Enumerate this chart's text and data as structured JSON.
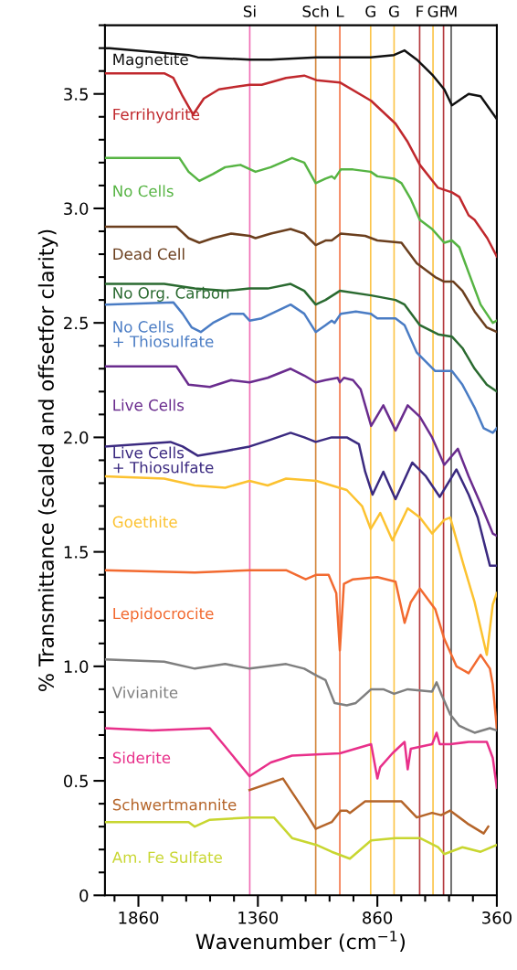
{
  "chart_data": {
    "type": "line",
    "xlabel": "Wavenumber (cm$^{−1}$)",
    "ylabel": "% Transmittance (scaled and offsetfor clarity)",
    "xlim": [
      2000,
      360
    ],
    "xticks": [
      {
        "value": 1960,
        "label": null
      },
      1860,
      {
        "value": 1760,
        "label": null
      },
      {
        "value": 1660,
        "label": null
      },
      {
        "value": 1560,
        "label": null
      },
      {
        "value": 1460,
        "label": null
      },
      1360,
      {
        "value": 1260,
        "label": null
      },
      {
        "value": 1160,
        "label": null
      },
      {
        "value": 1060,
        "label": null
      },
      {
        "value": 960,
        "label": null
      },
      860,
      {
        "value": 760,
        "label": null
      },
      {
        "value": 660,
        "label": null
      },
      {
        "value": 560,
        "label": null
      },
      {
        "value": 460,
        "label": null
      },
      360
    ],
    "ylim": [
      0,
      3.8
    ],
    "yticks": [
      0,
      {
        "value": 0.1,
        "label": null
      },
      {
        "value": 0.2,
        "label": null
      },
      {
        "value": 0.3,
        "label": null
      },
      {
        "value": 0.4,
        "label": null
      },
      0.5,
      {
        "value": 0.6,
        "label": null
      },
      {
        "value": 0.7,
        "label": null
      },
      {
        "value": 0.8,
        "label": null
      },
      {
        "value": 0.9,
        "label": null
      },
      {
        "value": 1,
        "label": "1.0"
      },
      {
        "value": 1.1,
        "label": null
      },
      {
        "value": 1.2,
        "label": null
      },
      {
        "value": 1.3,
        "label": null
      },
      {
        "value": 1.4,
        "label": null
      },
      1.5,
      {
        "value": 1.6,
        "label": null
      },
      {
        "value": 1.7,
        "label": null
      },
      {
        "value": 1.8,
        "label": null
      },
      {
        "value": 1.9,
        "label": null
      },
      {
        "value": 2,
        "label": "2.0"
      },
      {
        "value": 2.1,
        "label": null
      },
      {
        "value": 2.2,
        "label": null
      },
      {
        "value": 2.3,
        "label": null
      },
      {
        "value": 2.4,
        "label": null
      },
      2.5,
      {
        "value": 2.6,
        "label": null
      },
      {
        "value": 2.7,
        "label": null
      },
      {
        "value": 2.8,
        "label": null
      },
      {
        "value": 2.9,
        "label": null
      },
      {
        "value": 3,
        "label": "3.0"
      },
      {
        "value": 3.1,
        "label": null
      },
      {
        "value": 3.2,
        "label": null
      },
      {
        "value": 3.3,
        "label": null
      },
      {
        "value": 3.4,
        "label": null
      },
      3.5,
      {
        "value": 3.6,
        "label": null
      },
      {
        "value": 3.7,
        "label": null
      },
      {
        "value": 3.8,
        "label": null
      }
    ],
    "grid": false,
    "legend": false,
    "marker": "none",
    "line_style": "solid",
    "ref_lines": [
      {
        "axis": "x",
        "value": 1394,
        "label": "Si",
        "color": "#f06eb4"
      },
      {
        "axis": "x",
        "value": 1118,
        "label": "Sch",
        "color": "#d4873c"
      },
      {
        "axis": "x",
        "value": 1017,
        "label": "L",
        "color": "#f4764a"
      },
      {
        "axis": "x",
        "value": 888,
        "label": "G",
        "color": "#fcc54a"
      },
      {
        "axis": "x",
        "value": 790,
        "label": "G",
        "color": "#fcc54a"
      },
      {
        "axis": "x",
        "value": 683,
        "label": "F",
        "color": "#b53a3e"
      },
      {
        "axis": "x",
        "value": 627,
        "label": "G",
        "color": "#fcc54a"
      },
      {
        "axis": "x",
        "value": 583,
        "label": "F",
        "color": "#b53a3e"
      },
      {
        "axis": "x",
        "value": 551,
        "label": "M",
        "color": "#555555"
      }
    ],
    "series": [
      {
        "name": "Magnetite",
        "color": "#111111",
        "x": [
          2000,
          1981,
          1650,
          1612,
          1395,
          1306,
          1115,
          888,
          790,
          746,
          695,
          627,
          580,
          548,
          478,
          428,
          360
        ],
        "values": [
          3.7,
          3.7,
          3.67,
          3.66,
          3.65,
          3.65,
          3.66,
          3.66,
          3.67,
          3.69,
          3.65,
          3.58,
          3.52,
          3.45,
          3.5,
          3.49,
          3.39
        ]
      },
      {
        "name": "Ferrihydrite",
        "color": "#c0282d",
        "x": [
          2000,
          1752,
          1714,
          1675,
          1631,
          1586,
          1523,
          1395,
          1344,
          1242,
          1166,
          1115,
          1017,
          886,
          784,
          733,
          682,
          606,
          548,
          517,
          478,
          453,
          400,
          360
        ],
        "values": [
          3.59,
          3.59,
          3.57,
          3.49,
          3.41,
          3.48,
          3.52,
          3.54,
          3.54,
          3.57,
          3.58,
          3.56,
          3.55,
          3.47,
          3.37,
          3.29,
          3.19,
          3.09,
          3.07,
          3.05,
          2.97,
          2.95,
          2.87,
          2.79
        ]
      },
      {
        "name": "No Cells",
        "color": "#56b443",
        "x": [
          2000,
          1688,
          1650,
          1605,
          1548,
          1497,
          1433,
          1370,
          1306,
          1217,
          1166,
          1118,
          1077,
          1051,
          1039,
          1013,
          962,
          888,
          860,
          790,
          759,
          720,
          682,
          631,
          580,
          548,
          517,
          478,
          428,
          377,
          360
        ],
        "values": [
          3.22,
          3.22,
          3.16,
          3.12,
          3.15,
          3.18,
          3.19,
          3.16,
          3.18,
          3.22,
          3.2,
          3.11,
          3.13,
          3.14,
          3.13,
          3.17,
          3.17,
          3.16,
          3.14,
          3.13,
          3.11,
          3.04,
          2.95,
          2.91,
          2.85,
          2.86,
          2.83,
          2.72,
          2.58,
          2.5,
          2.51
        ]
      },
      {
        "name": "Dead Cell",
        "color": "#6b3f1e",
        "x": [
          2000,
          1701,
          1650,
          1605,
          1548,
          1472,
          1395,
          1370,
          1306,
          1223,
          1166,
          1118,
          1077,
          1051,
          1013,
          911,
          860,
          759,
          695,
          618,
          580,
          542,
          504,
          453,
          402,
          360
        ],
        "values": [
          2.92,
          2.92,
          2.87,
          2.85,
          2.87,
          2.89,
          2.88,
          2.87,
          2.89,
          2.91,
          2.89,
          2.84,
          2.86,
          2.86,
          2.89,
          2.88,
          2.86,
          2.85,
          2.76,
          2.7,
          2.68,
          2.68,
          2.64,
          2.55,
          2.48,
          2.46
        ]
      },
      {
        "name": "No Org. Carbon",
        "color": "#2a6a30",
        "x": [
          2000,
          1752,
          1624,
          1497,
          1395,
          1319,
          1223,
          1166,
          1118,
          1077,
          1017,
          886,
          784,
          746,
          682,
          606,
          548,
          504,
          453,
          402,
          360
        ],
        "values": [
          2.67,
          2.67,
          2.65,
          2.64,
          2.65,
          2.65,
          2.67,
          2.64,
          2.58,
          2.6,
          2.64,
          2.62,
          2.6,
          2.58,
          2.49,
          2.45,
          2.44,
          2.39,
          2.3,
          2.23,
          2.2
        ]
      },
      {
        "name": "No Cells\n+ Thiosulfate",
        "color": "#4a7cc4",
        "x": [
          2000,
          1714,
          1675,
          1637,
          1599,
          1548,
          1472,
          1421,
          1395,
          1344,
          1223,
          1166,
          1118,
          1077,
          1051,
          1039,
          1013,
          950,
          888,
          860,
          784,
          746,
          695,
          618,
          580,
          548,
          504,
          453,
          415,
          377,
          360
        ],
        "values": [
          2.58,
          2.59,
          2.54,
          2.48,
          2.46,
          2.5,
          2.54,
          2.54,
          2.51,
          2.52,
          2.58,
          2.54,
          2.46,
          2.49,
          2.51,
          2.5,
          2.54,
          2.55,
          2.54,
          2.52,
          2.52,
          2.49,
          2.37,
          2.29,
          2.29,
          2.29,
          2.23,
          2.13,
          2.04,
          2.02,
          2.04
        ]
      },
      {
        "name": "Live Cells",
        "color": "#6a2c8e",
        "x": [
          2000,
          1701,
          1650,
          1561,
          1472,
          1395,
          1319,
          1223,
          1166,
          1118,
          1077,
          1026,
          1017,
          1000,
          962,
          930,
          886,
          835,
          784,
          733,
          682,
          631,
          580,
          523,
          478,
          428,
          377,
          360
        ],
        "values": [
          2.31,
          2.31,
          2.23,
          2.22,
          2.25,
          2.24,
          2.26,
          2.3,
          2.27,
          2.24,
          2.25,
          2.26,
          2.24,
          2.26,
          2.25,
          2.21,
          2.05,
          2.14,
          2.03,
          2.14,
          2.09,
          2.0,
          1.88,
          1.95,
          1.83,
          1.71,
          1.58,
          1.57
        ]
      },
      {
        "name": "Live Cells\n+ Thiosulfate",
        "color": "#3b2a80",
        "x": [
          2000,
          1726,
          1675,
          1612,
          1497,
          1395,
          1306,
          1223,
          1166,
          1118,
          1051,
          988,
          937,
          911,
          880,
          835,
          784,
          714,
          657,
          599,
          529,
          478,
          440,
          389,
          360
        ],
        "values": [
          1.96,
          1.98,
          1.96,
          1.92,
          1.94,
          1.96,
          1.99,
          2.02,
          2.0,
          1.98,
          2.0,
          2.0,
          1.97,
          1.85,
          1.75,
          1.85,
          1.73,
          1.89,
          1.83,
          1.74,
          1.86,
          1.75,
          1.65,
          1.44,
          1.44
        ]
      },
      {
        "name": "Goethite",
        "color": "#fcc230",
        "x": [
          2000,
          1752,
          1624,
          1497,
          1395,
          1319,
          1242,
          1115,
          988,
          924,
          888,
          848,
          797,
          733,
          682,
          631,
          580,
          555,
          504,
          453,
          402,
          377,
          360
        ],
        "values": [
          1.83,
          1.82,
          1.79,
          1.78,
          1.81,
          1.79,
          1.82,
          1.81,
          1.77,
          1.7,
          1.6,
          1.67,
          1.55,
          1.69,
          1.65,
          1.58,
          1.64,
          1.65,
          1.46,
          1.28,
          1.05,
          1.27,
          1.32
        ]
      },
      {
        "name": "Lepidocrocite",
        "color": "#f26a30",
        "x": [
          2000,
          1624,
          1395,
          1242,
          1160,
          1115,
          1064,
          1032,
          1017,
          1000,
          962,
          860,
          784,
          746,
          720,
          682,
          618,
          580,
          529,
          478,
          428,
          389,
          377,
          360
        ],
        "values": [
          1.42,
          1.41,
          1.42,
          1.42,
          1.38,
          1.4,
          1.4,
          1.32,
          1.07,
          1.36,
          1.38,
          1.39,
          1.37,
          1.19,
          1.28,
          1.34,
          1.25,
          1.12,
          1.0,
          0.97,
          1.05,
          0.99,
          0.92,
          0.73
        ]
      },
      {
        "name": "Vivianite",
        "color": "#7f7f7f",
        "x": [
          2000,
          1752,
          1624,
          1497,
          1395,
          1242,
          1166,
          1115,
          1077,
          1039,
          988,
          950,
          886,
          835,
          790,
          733,
          631,
          612,
          593,
          555,
          517,
          453,
          389,
          360
        ],
        "values": [
          1.03,
          1.02,
          0.99,
          1.01,
          0.99,
          1.01,
          0.99,
          0.96,
          0.94,
          0.84,
          0.83,
          0.84,
          0.9,
          0.9,
          0.88,
          0.9,
          0.89,
          0.93,
          0.88,
          0.79,
          0.74,
          0.71,
          0.73,
          0.72
        ]
      },
      {
        "name": "Siderite",
        "color": "#e8308a",
        "x": [
          2000,
          1803,
          1561,
          1497,
          1395,
          1306,
          1217,
          1017,
          886,
          860,
          848,
          797,
          746,
          733,
          720,
          631,
          612,
          599,
          555,
          478,
          402,
          377,
          360
        ],
        "values": [
          0.73,
          0.72,
          0.73,
          0.65,
          0.52,
          0.58,
          0.61,
          0.62,
          0.66,
          0.51,
          0.56,
          0.62,
          0.67,
          0.55,
          0.64,
          0.66,
          0.71,
          0.66,
          0.66,
          0.67,
          0.67,
          0.6,
          0.47
        ]
      },
      {
        "name": "Schwertmannite",
        "color": "#b5652a",
        "x": [
          1395,
          1255,
          1217,
          1153,
          1118,
          1051,
          1013,
          988,
          975,
          911,
          759,
          695,
          631,
          593,
          555,
          478,
          415,
          396
        ],
        "values": [
          0.46,
          0.51,
          0.45,
          0.35,
          0.29,
          0.32,
          0.37,
          0.37,
          0.36,
          0.41,
          0.41,
          0.34,
          0.36,
          0.35,
          0.37,
          0.31,
          0.27,
          0.3
        ]
      },
      {
        "name": "Am. Fe Sulfate",
        "color": "#c8d630",
        "x": [
          2000,
          1650,
          1624,
          1561,
          1395,
          1293,
          1217,
          1115,
          1051,
          975,
          886,
          784,
          682,
          606,
          580,
          504,
          428,
          360
        ],
        "values": [
          0.32,
          0.32,
          0.3,
          0.33,
          0.34,
          0.34,
          0.25,
          0.22,
          0.19,
          0.16,
          0.24,
          0.25,
          0.25,
          0.21,
          0.18,
          0.21,
          0.19,
          0.22
        ]
      }
    ]
  }
}
